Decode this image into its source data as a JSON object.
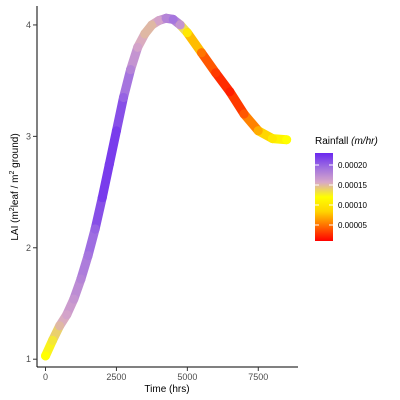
{
  "chart_data": {
    "type": "line",
    "title": "",
    "xlabel": "Time (hrs)",
    "ylabel": {
      "prefix": "LAI (m",
      "sup1": "2",
      "mid": "leaf / m",
      "sup2": "2",
      "suffix": " ground)"
    },
    "xlim": [
      -300,
      8900
    ],
    "ylim": [
      0.93,
      4.17
    ],
    "x_ticks": [
      0,
      2500,
      5000,
      7500
    ],
    "x_tick_labels": [
      "0",
      "2500",
      "5000",
      "7500"
    ],
    "y_ticks": [
      1,
      2,
      3,
      4
    ],
    "y_tick_labels": [
      "1",
      "2",
      "3",
      "4"
    ],
    "grid": false,
    "legend_position": "right",
    "series": [
      {
        "points": [
          {
            "x": 0,
            "y": 1.03,
            "rainfall": 0.00012
          },
          {
            "x": 250,
            "y": 1.17,
            "rainfall": 0.00013
          },
          {
            "x": 500,
            "y": 1.3,
            "rainfall": 0.00015
          },
          {
            "x": 750,
            "y": 1.4,
            "rainfall": 0.00016
          },
          {
            "x": 1000,
            "y": 1.54,
            "rainfall": 0.00017
          },
          {
            "x": 1250,
            "y": 1.72,
            "rainfall": 0.00018
          },
          {
            "x": 1500,
            "y": 1.93,
            "rainfall": 0.00019
          },
          {
            "x": 1750,
            "y": 2.17,
            "rainfall": 0.0002
          },
          {
            "x": 2000,
            "y": 2.45,
            "rainfall": 0.00022
          },
          {
            "x": 2250,
            "y": 2.75,
            "rainfall": 0.00022
          },
          {
            "x": 2500,
            "y": 3.05,
            "rainfall": 0.00022
          },
          {
            "x": 2750,
            "y": 3.35,
            "rainfall": 0.0002
          },
          {
            "x": 3000,
            "y": 3.6,
            "rainfall": 0.00018
          },
          {
            "x": 3250,
            "y": 3.8,
            "rainfall": 0.00016
          },
          {
            "x": 3500,
            "y": 3.92,
            "rainfall": 0.00015
          },
          {
            "x": 3750,
            "y": 4.0,
            "rainfall": 0.00015
          },
          {
            "x": 4000,
            "y": 4.04,
            "rainfall": 0.00016
          },
          {
            "x": 4250,
            "y": 4.06,
            "rainfall": 0.00018
          },
          {
            "x": 4500,
            "y": 4.05,
            "rainfall": 0.00019
          },
          {
            "x": 4750,
            "y": 4.0,
            "rainfall": 0.00017
          },
          {
            "x": 5000,
            "y": 3.93,
            "rainfall": 0.0001
          },
          {
            "x": 5500,
            "y": 3.75,
            "rainfall": 5e-05
          },
          {
            "x": 6000,
            "y": 3.57,
            "rainfall": 3e-05
          },
          {
            "x": 6500,
            "y": 3.4,
            "rainfall": 2e-05
          },
          {
            "x": 7000,
            "y": 3.2,
            "rainfall": 4e-05
          },
          {
            "x": 7500,
            "y": 3.05,
            "rainfall": 7e-05
          },
          {
            "x": 8000,
            "y": 2.98,
            "rainfall": 0.0001
          },
          {
            "x": 8500,
            "y": 2.97,
            "rainfall": 0.00012
          }
        ]
      }
    ],
    "legend": {
      "title_prefix": "Rainfall ",
      "title_unit": "(m/hr)",
      "range": [
        1e-05,
        0.00023
      ],
      "breaks": [
        5e-05,
        0.0001,
        0.00015,
        0.0002
      ],
      "break_labels": [
        "0.00005",
        "0.00010",
        "0.00015",
        "0.00020"
      ],
      "gradient_colors": [
        "#ff0000",
        "#ff6a00",
        "#ffd400",
        "#ffff00",
        "#d8a8c8",
        "#a070e0",
        "#6a28f0"
      ]
    }
  }
}
